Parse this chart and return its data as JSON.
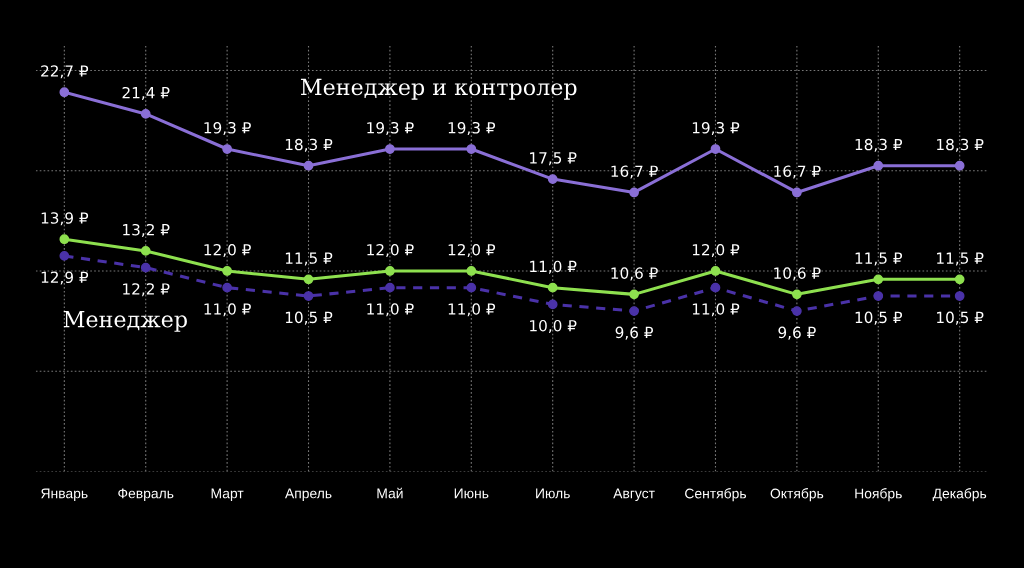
{
  "chart_data": {
    "type": "line",
    "categories": [
      "Январь",
      "Февраль",
      "Март",
      "Апрель",
      "Май",
      "Июнь",
      "Июль",
      "Август",
      "Сентябрь",
      "Октябрь",
      "Ноябрь",
      "Декабрь"
    ],
    "ylim": [
      0,
      25.5
    ],
    "yticks": [
      {
        "value": 0,
        "label": null
      },
      {
        "value": 6,
        "label": null
      },
      {
        "value": 12,
        "label": null
      },
      {
        "value": 18,
        "label": null
      },
      {
        "value": 24,
        "label": null
      }
    ],
    "tick_labels": "x",
    "grid": true,
    "marker": "circle",
    "legend": false,
    "series": [
      {
        "name": "Менеджер и контролер",
        "color": "#8a6fd6",
        "line_style": "solid",
        "values": [
          22.7,
          21.4,
          19.3,
          18.3,
          19.3,
          19.3,
          17.5,
          16.7,
          19.3,
          16.7,
          18.3,
          18.3
        ],
        "value_labels": [
          "22,7 ₽",
          "21,4 ₽",
          "19,3 ₽",
          "18,3 ₽",
          "19,3 ₽",
          "19,3 ₽",
          "17,5 ₽",
          "16,7 ₽",
          "19,3 ₽",
          "16,7 ₽",
          "18,3 ₽",
          "18,3 ₽"
        ]
      },
      {
        "color": "#8ee04f",
        "line_style": "solid",
        "values": [
          13.9,
          13.2,
          12.0,
          11.5,
          12.0,
          12.0,
          11.0,
          10.6,
          12.0,
          10.6,
          11.5,
          11.5
        ],
        "value_labels": [
          "13,9 ₽",
          "13,2 ₽",
          "12,0 ₽",
          "11,5 ₽",
          "12,0 ₽",
          "12,0 ₽",
          "11,0 ₽",
          "10,6 ₽",
          "12,0 ₽",
          "10,6 ₽",
          "11,5 ₽",
          "11,5 ₽"
        ]
      },
      {
        "name": "Менеджер",
        "color": "#4a32a8",
        "line_style": "dashed",
        "values": [
          12.9,
          12.2,
          11.0,
          10.5,
          11.0,
          11.0,
          10.0,
          9.6,
          11.0,
          9.6,
          10.5,
          10.5
        ],
        "value_labels": [
          "12,9 ₽",
          "12,2 ₽",
          "11,0 ₽",
          "10,5 ₽",
          "11,0 ₽",
          "11,0 ₽",
          "10,0 ₽",
          "9,6 ₽",
          "11,0 ₽",
          "9,6 ₽",
          "10,5 ₽",
          "10,5 ₽"
        ]
      }
    ]
  }
}
